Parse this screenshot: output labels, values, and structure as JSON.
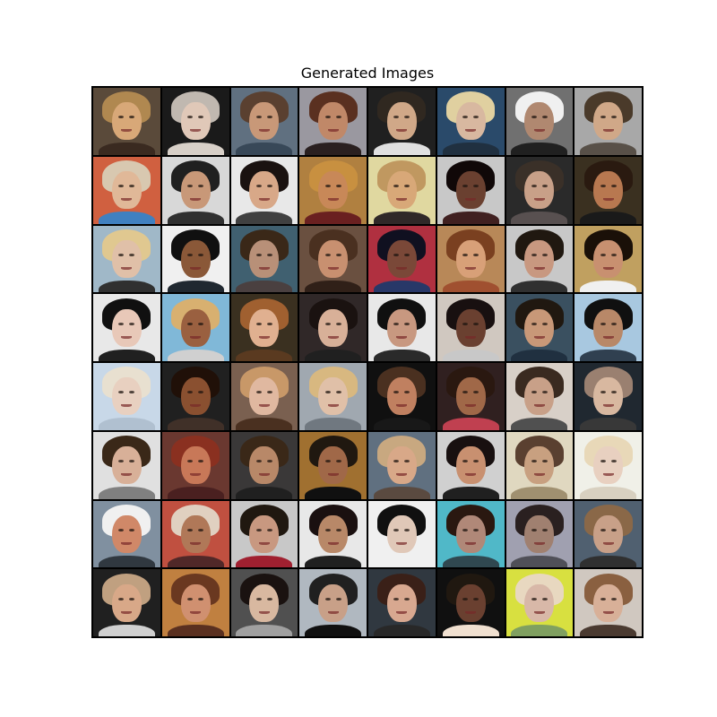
{
  "figure": {
    "title": "Generated Images",
    "grid": {
      "rows": 8,
      "cols": 8
    },
    "tiles": [
      {
        "bg": "#5a4a3a",
        "hair": "#b08850",
        "skin": "#d8a878",
        "cloth": "#3a2a20"
      },
      {
        "bg": "#1a1a1a",
        "hair": "#c0b8b0",
        "skin": "#e0c8b8",
        "cloth": "#d8d0c8"
      },
      {
        "bg": "#607080",
        "hair": "#5a4030",
        "skin": "#c89878",
        "cloth": "#384858"
      },
      {
        "bg": "#9a98a0",
        "hair": "#5a3020",
        "skin": "#c08868",
        "cloth": "#2a2020"
      },
      {
        "bg": "#202020",
        "hair": "#302820",
        "skin": "#d0a888",
        "cloth": "#e0e0e0"
      },
      {
        "bg": "#2a4a6a",
        "hair": "#e0d0a0",
        "skin": "#d8b8a0",
        "cloth": "#203040"
      },
      {
        "bg": "#707070",
        "hair": "#f0f0f0",
        "skin": "#b08870",
        "cloth": "#202020"
      },
      {
        "bg": "#a8a8a8",
        "hair": "#4a3a2a",
        "skin": "#d0a888",
        "cloth": "#585048"
      },
      {
        "bg": "#d06040",
        "hair": "#d8c8b0",
        "skin": "#e0b898",
        "cloth": "#4080c0"
      },
      {
        "bg": "#d8d8d8",
        "hair": "#202020",
        "skin": "#c89878",
        "cloth": "#303030"
      },
      {
        "bg": "#e8e8e8",
        "hair": "#1a1210",
        "skin": "#d8a888",
        "cloth": "#404040"
      },
      {
        "bg": "#b08040",
        "hair": "#c89040",
        "skin": "#c88858",
        "cloth": "#6a2020"
      },
      {
        "bg": "#e0d8a0",
        "hair": "#c09860",
        "skin": "#d8a878",
        "cloth": "#302828"
      },
      {
        "bg": "#c8c8c8",
        "hair": "#100808",
        "skin": "#6a4030",
        "cloth": "#402020"
      },
      {
        "bg": "#2a2a2a",
        "hair": "#3a3028",
        "skin": "#c8a088",
        "cloth": "#585050"
      },
      {
        "bg": "#3a3020",
        "hair": "#2a1a10",
        "skin": "#b87850",
        "cloth": "#1a1a1a"
      },
      {
        "bg": "#a0b8c8",
        "hair": "#e0c890",
        "skin": "#e0c0a8",
        "cloth": "#303030"
      },
      {
        "bg": "#f0f0f0",
        "hair": "#101010",
        "skin": "#8a5838",
        "cloth": "#202830"
      },
      {
        "bg": "#406070",
        "hair": "#3a2818",
        "skin": "#b89078",
        "cloth": "#4a4040"
      },
      {
        "bg": "#6a5040",
        "hair": "#4a3020",
        "skin": "#c89070",
        "cloth": "#302018"
      },
      {
        "bg": "#b03040",
        "hair": "#101020",
        "skin": "#7a4838",
        "cloth": "#283868"
      },
      {
        "bg": "#b88858",
        "hair": "#7a4020",
        "skin": "#d8a078",
        "cloth": "#a05030"
      },
      {
        "bg": "#c8c8c8",
        "hair": "#201810",
        "skin": "#c89880",
        "cloth": "#303030"
      },
      {
        "bg": "#c0a060",
        "hair": "#1a1008",
        "skin": "#c89070",
        "cloth": "#f0f0f0"
      },
      {
        "bg": "#e8e8e8",
        "hair": "#101010",
        "skin": "#e8c8b8",
        "cloth": "#202020"
      },
      {
        "bg": "#80b8d8",
        "hair": "#d8b070",
        "skin": "#9a6040",
        "cloth": "#d0d0d0"
      },
      {
        "bg": "#3a3020",
        "hair": "#a06030",
        "skin": "#e0b090",
        "cloth": "#5a3a20"
      },
      {
        "bg": "#302828",
        "hair": "#1a1210",
        "skin": "#d8b098",
        "cloth": "#202020"
      },
      {
        "bg": "#e8e8e8",
        "hair": "#101010",
        "skin": "#c89880",
        "cloth": "#2a2a2a"
      },
      {
        "bg": "#d0c8c0",
        "hair": "#181010",
        "skin": "#6a4030",
        "cloth": "#c8c8c8"
      },
      {
        "bg": "#3a5060",
        "hair": "#201810",
        "skin": "#c89878",
        "cloth": "#203040"
      },
      {
        "bg": "#a8c8e0",
        "hair": "#101010",
        "skin": "#b88868",
        "cloth": "#304050"
      },
      {
        "bg": "#c8d8e8",
        "hair": "#e8e0d0",
        "skin": "#e8d0c0",
        "cloth": "#b0c0d0"
      },
      {
        "bg": "#202020",
        "hair": "#201008",
        "skin": "#8a5030",
        "cloth": "#403028"
      },
      {
        "bg": "#7a6050",
        "hair": "#c89868",
        "skin": "#e0b8a0",
        "cloth": "#4a3020"
      },
      {
        "bg": "#a0a8b0",
        "hair": "#d8b880",
        "skin": "#e0c0a8",
        "cloth": "#707880"
      },
      {
        "bg": "#101010",
        "hair": "#4a3020",
        "skin": "#c08060",
        "cloth": "#181818"
      },
      {
        "bg": "#302020",
        "hair": "#2a1810",
        "skin": "#a06848",
        "cloth": "#c04050"
      },
      {
        "bg": "#d8d0c8",
        "hair": "#3a2a20",
        "skin": "#c8a088",
        "cloth": "#505050"
      },
      {
        "bg": "#202830",
        "hair": "#9a8070",
        "skin": "#d8b8a0",
        "cloth": "#383838"
      },
      {
        "bg": "#e0e0e0",
        "hair": "#3a2818",
        "skin": "#d8b098",
        "cloth": "#808080"
      },
      {
        "bg": "#6a3830",
        "hair": "#8a3020",
        "skin": "#c87858",
        "cloth": "#4a2020"
      },
      {
        "bg": "#3a3838",
        "hair": "#3a2818",
        "skin": "#b88868",
        "cloth": "#202020"
      },
      {
        "bg": "#a07030",
        "hair": "#201810",
        "skin": "#a06848",
        "cloth": "#101010"
      },
      {
        "bg": "#607080",
        "hair": "#c8a880",
        "skin": "#d8a888",
        "cloth": "#5a4a40"
      },
      {
        "bg": "#d0d0d0",
        "hair": "#181010",
        "skin": "#c89070",
        "cloth": "#202020"
      },
      {
        "bg": "#e0d8c0",
        "hair": "#5a4030",
        "skin": "#c8a080",
        "cloth": "#a09070"
      },
      {
        "bg": "#f0f0e8",
        "hair": "#e8d8b8",
        "skin": "#e8d0c0",
        "cloth": "#d8d0c0"
      },
      {
        "bg": "#8090a0",
        "hair": "#f0f0f0",
        "skin": "#d08868",
        "cloth": "#303840"
      },
      {
        "bg": "#c05040",
        "hair": "#e0d0c0",
        "skin": "#b07858",
        "cloth": "#502828"
      },
      {
        "bg": "#c8c8c8",
        "hair": "#201810",
        "skin": "#c89880",
        "cloth": "#a02030"
      },
      {
        "bg": "#e8e8e8",
        "hair": "#1a1010",
        "skin": "#b88868",
        "cloth": "#202020"
      },
      {
        "bg": "#f0f0f0",
        "hair": "#101010",
        "skin": "#e0c8b8",
        "cloth": "#f0f0f0"
      },
      {
        "bg": "#50b8c8",
        "hair": "#2a1810",
        "skin": "#b08878",
        "cloth": "#304850"
      },
      {
        "bg": "#a0a0b0",
        "hair": "#2a2020",
        "skin": "#a08070",
        "cloth": "#505058"
      },
      {
        "bg": "#506070",
        "hair": "#8a6848",
        "skin": "#c8a088",
        "cloth": "#303030"
      },
      {
        "bg": "#202020",
        "hair": "#c0a080",
        "skin": "#d8a888",
        "cloth": "#d0d0d0"
      },
      {
        "bg": "#c08040",
        "hair": "#6a3820",
        "skin": "#d09070",
        "cloth": "#5a3020"
      },
      {
        "bg": "#505050",
        "hair": "#1a1210",
        "skin": "#d8b8a0",
        "cloth": "#a0a0a0"
      },
      {
        "bg": "#b0b8c0",
        "hair": "#202020",
        "skin": "#c8a088",
        "cloth": "#101010"
      },
      {
        "bg": "#303840",
        "hair": "#3a2018",
        "skin": "#d8a890",
        "cloth": "#282828"
      },
      {
        "bg": "#101010",
        "hair": "#201810",
        "skin": "#6a4030",
        "cloth": "#f0e0d0"
      },
      {
        "bg": "#d8e040",
        "hair": "#e8d8c0",
        "skin": "#d8b8a8",
        "cloth": "#80a060"
      },
      {
        "bg": "#d0c8c0",
        "hair": "#8a6040",
        "skin": "#d8b098",
        "cloth": "#4a3a30"
      }
    ]
  }
}
